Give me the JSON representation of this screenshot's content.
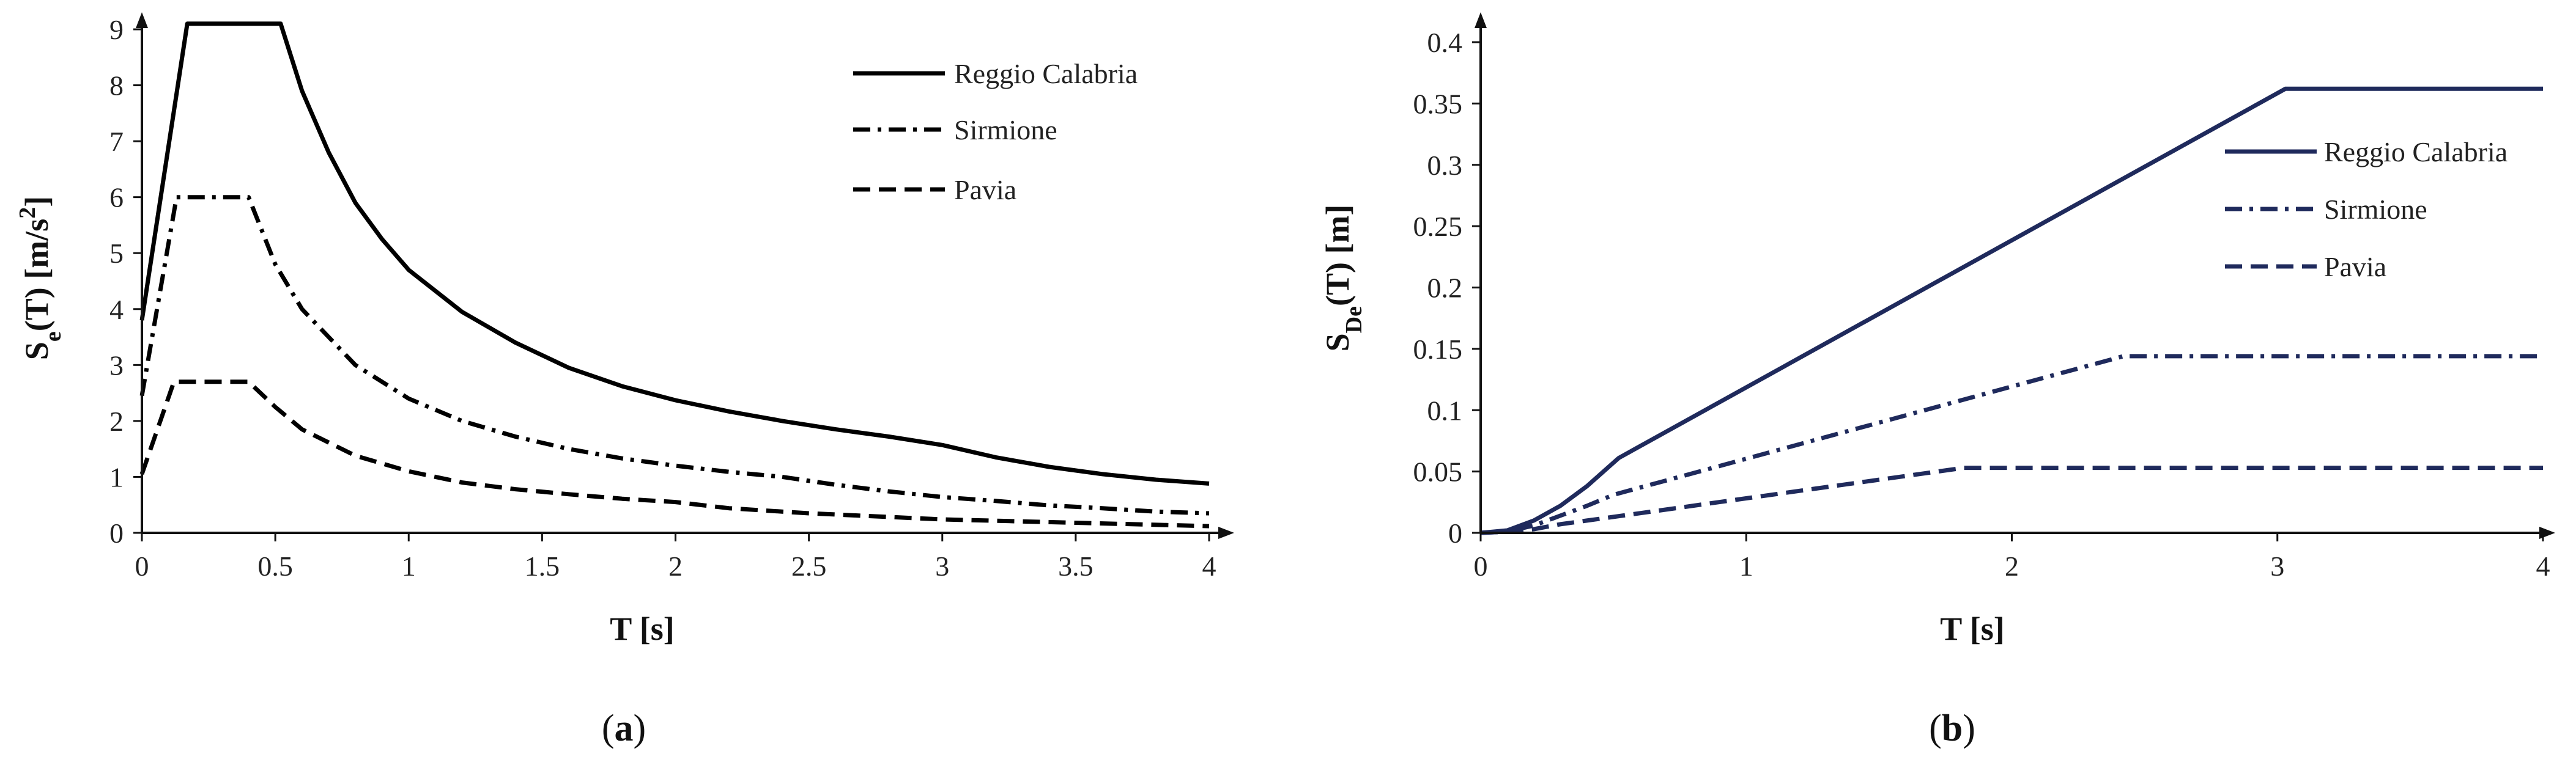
{
  "chart_data": [
    {
      "type": "line",
      "id": "a",
      "caption_open": "(",
      "caption_letter": "a",
      "caption_close": ")",
      "xlabel": "T [s]",
      "ylabel_main": "S",
      "ylabel_sub": "e",
      "ylabel_rest": "(T) [m/s",
      "ylabel_sup": "2",
      "ylabel_end": "]",
      "xlim": [
        0,
        4
      ],
      "ylim": [
        0,
        9
      ],
      "xticks": [
        0,
        0.5,
        1,
        1.5,
        2,
        2.5,
        3,
        3.5,
        4
      ],
      "xtick_labels": [
        "0",
        "0.5",
        "1",
        "1.5",
        "2",
        "2.5",
        "3",
        "3.5",
        "4"
      ],
      "yticks": [
        0,
        1,
        2,
        3,
        4,
        5,
        6,
        7,
        8,
        9
      ],
      "ytick_labels": [
        "0",
        "1",
        "2",
        "3",
        "4",
        "5",
        "6",
        "7",
        "8",
        "9"
      ],
      "color": "#000000",
      "series": [
        {
          "name": "Reggio Calabria",
          "dash": "solid",
          "x": [
            0,
            0.17,
            0.52,
            0.6,
            0.7,
            0.8,
            0.9,
            1.0,
            1.2,
            1.4,
            1.6,
            1.8,
            2.0,
            2.2,
            2.4,
            2.6,
            2.8,
            3.0,
            3.2,
            3.4,
            3.6,
            3.8,
            4.0
          ],
          "values": [
            3.8,
            9.1,
            9.1,
            7.9,
            6.8,
            5.9,
            5.25,
            4.7,
            3.95,
            3.4,
            2.95,
            2.62,
            2.37,
            2.17,
            2.0,
            1.85,
            1.72,
            1.57,
            1.35,
            1.18,
            1.05,
            0.95,
            0.88
          ]
        },
        {
          "name": "Sirmione",
          "dash": "dashdot",
          "x": [
            0,
            0.13,
            0.4,
            0.5,
            0.6,
            0.8,
            1.0,
            1.2,
            1.4,
            1.6,
            1.8,
            2.0,
            2.2,
            2.4,
            2.6,
            2.8,
            3.0,
            3.2,
            3.4,
            3.6,
            3.8,
            4.0
          ],
          "values": [
            2.45,
            6.0,
            6.0,
            4.8,
            4.0,
            3.0,
            2.4,
            2.0,
            1.72,
            1.5,
            1.33,
            1.2,
            1.09,
            1.0,
            0.86,
            0.74,
            0.64,
            0.57,
            0.49,
            0.44,
            0.38,
            0.35
          ]
        },
        {
          "name": "Pavia",
          "dash": "dashed",
          "x": [
            0,
            0.12,
            0.4,
            0.5,
            0.6,
            0.8,
            1.0,
            1.2,
            1.4,
            1.6,
            1.8,
            2.0,
            2.2,
            2.5,
            3.0,
            3.5,
            4.0
          ],
          "values": [
            1.05,
            2.7,
            2.7,
            2.25,
            1.85,
            1.38,
            1.1,
            0.9,
            0.78,
            0.69,
            0.61,
            0.55,
            0.44,
            0.35,
            0.24,
            0.18,
            0.12
          ]
        }
      ]
    },
    {
      "type": "line",
      "id": "b",
      "caption_open": "(",
      "caption_letter": "b",
      "caption_close": ")",
      "xlabel": "T [s]",
      "ylabel_main": "S",
      "ylabel_sub": "De",
      "ylabel_rest": "(T) [m]",
      "ylabel_sup": "",
      "ylabel_end": "",
      "xlim": [
        0,
        4
      ],
      "ylim": [
        0,
        0.4
      ],
      "xticks": [
        0,
        1,
        2,
        3,
        4
      ],
      "xtick_labels": [
        "0",
        "1",
        "2",
        "3",
        "4"
      ],
      "yticks": [
        0,
        0.05,
        0.1,
        0.15,
        0.2,
        0.25,
        0.3,
        0.35,
        0.4
      ],
      "ytick_labels": [
        "0",
        "0.05",
        "0.1",
        "0.15",
        "0.2",
        "0.25",
        "0.3",
        "0.35",
        "0.4"
      ],
      "color": "#1f2a5c",
      "series": [
        {
          "name": "Reggio Calabria",
          "dash": "solid",
          "x": [
            0,
            0.1,
            0.2,
            0.3,
            0.4,
            0.52,
            3.03,
            4.0
          ],
          "values": [
            0,
            0.002,
            0.01,
            0.022,
            0.038,
            0.061,
            0.362,
            0.362
          ]
        },
        {
          "name": "Sirmione",
          "dash": "dashdot",
          "x": [
            0,
            0.1,
            0.2,
            0.3,
            0.4,
            0.5,
            2.42,
            4.0
          ],
          "values": [
            0,
            0.001,
            0.006,
            0.014,
            0.022,
            0.031,
            0.144,
            0.144
          ]
        },
        {
          "name": "Pavia",
          "dash": "dashed",
          "x": [
            0,
            0.1,
            0.2,
            0.3,
            0.4,
            0.5,
            1.82,
            4.0
          ],
          "values": [
            0,
            0.001,
            0.003,
            0.007,
            0.01,
            0.013,
            0.053,
            0.053
          ]
        }
      ]
    }
  ]
}
